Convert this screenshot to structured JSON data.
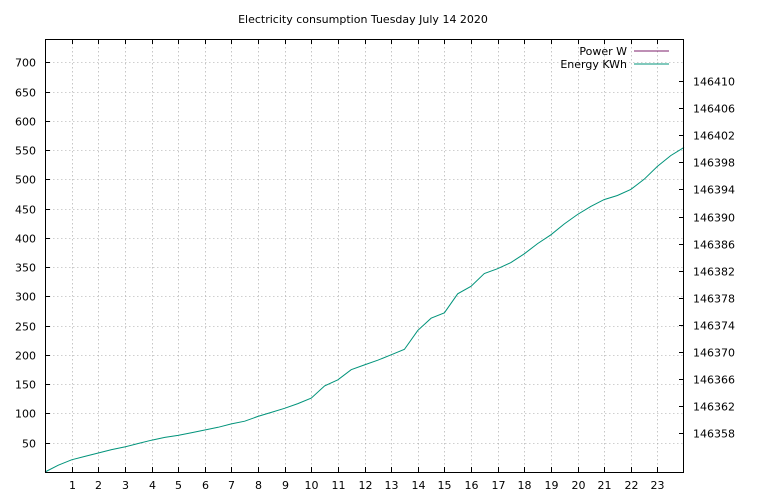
{
  "chart_data": {
    "type": "line",
    "title": "Electricity consumption Tuesday July 14 2020",
    "xlabel": "",
    "ylabel": "",
    "xlim": [
      0,
      24
    ],
    "ylim": [
      0,
      740
    ],
    "y2lim": [
      146352.3,
      146416.2
    ],
    "x_ticks": [
      1,
      2,
      3,
      4,
      5,
      6,
      7,
      8,
      9,
      10,
      11,
      12,
      13,
      14,
      15,
      16,
      17,
      18,
      19,
      20,
      21,
      22,
      23
    ],
    "y_ticks": [
      50,
      100,
      150,
      200,
      250,
      300,
      350,
      400,
      450,
      500,
      550,
      600,
      650,
      700
    ],
    "y2_ticks": [
      146358,
      146362,
      146366,
      146370,
      146374,
      146378,
      146382,
      146386,
      146390,
      146394,
      146398,
      146402,
      146406,
      146410
    ],
    "grid": true,
    "legend_position": "top-right",
    "series": [
      {
        "name": "Power W",
        "axis": "y1",
        "color": "#7d1f6b",
        "x": [],
        "y": []
      },
      {
        "name": "Energy KWh",
        "axis": "y2",
        "color": "#00937a",
        "x": [
          0,
          0.5,
          1,
          1.5,
          2,
          2.5,
          3,
          3.5,
          4,
          4.5,
          5,
          5.5,
          6,
          6.5,
          7,
          7.5,
          8,
          8.5,
          9,
          9.5,
          10,
          10.5,
          11,
          11.5,
          12,
          12.5,
          13,
          13.5,
          14,
          14.5,
          15,
          15.5,
          16,
          16.5,
          17,
          17.5,
          18,
          18.5,
          19,
          19.5,
          20,
          20.5,
          21,
          21.5,
          22,
          22.5,
          23,
          23.5,
          24
        ],
        "y": [
          146352.3,
          146353.3,
          146354.1,
          146354.6,
          146355.1,
          146355.6,
          146356.0,
          146356.5,
          146357.0,
          146357.4,
          146357.7,
          146358.1,
          146358.5,
          146358.9,
          146359.4,
          146359.8,
          146360.5,
          146361.1,
          146361.7,
          146362.4,
          146363.2,
          146365.0,
          146365.9,
          146367.4,
          146368.1,
          146368.8,
          146369.6,
          146370.4,
          146373.2,
          146375.0,
          146375.8,
          146378.6,
          146379.7,
          146381.6,
          146382.3,
          146383.2,
          146384.5,
          146386.0,
          146387.3,
          146388.9,
          146390.3,
          146391.5,
          146392.5,
          146393.1,
          146394.0,
          146395.5,
          146397.4,
          146399.0,
          146400.2
        ]
      }
    ]
  }
}
